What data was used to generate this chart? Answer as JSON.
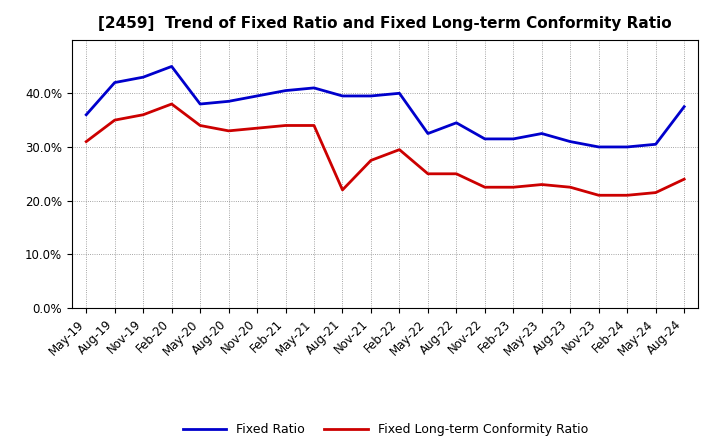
{
  "title": "[2459]  Trend of Fixed Ratio and Fixed Long-term Conformity Ratio",
  "x_labels": [
    "May-19",
    "Aug-19",
    "Nov-19",
    "Feb-20",
    "May-20",
    "Aug-20",
    "Nov-20",
    "Feb-21",
    "May-21",
    "Aug-21",
    "Nov-21",
    "Feb-22",
    "May-22",
    "Aug-22",
    "Nov-22",
    "Feb-23",
    "May-23",
    "Aug-23",
    "Nov-23",
    "Feb-24",
    "May-24",
    "Aug-24"
  ],
  "fixed_ratio": [
    36.0,
    42.0,
    43.0,
    45.0,
    38.0,
    38.5,
    39.5,
    40.5,
    41.0,
    39.5,
    39.5,
    40.0,
    32.5,
    34.5,
    31.5,
    31.5,
    32.5,
    31.0,
    30.0,
    30.0,
    30.5,
    37.5
  ],
  "fixed_lt_ratio": [
    31.0,
    35.0,
    36.0,
    38.0,
    34.0,
    33.0,
    33.5,
    34.0,
    34.0,
    22.0,
    27.5,
    29.5,
    25.0,
    25.0,
    22.5,
    22.5,
    23.0,
    22.5,
    21.0,
    21.0,
    21.5,
    24.0
  ],
  "ylim": [
    0,
    50
  ],
  "yticks": [
    0,
    10,
    20,
    30,
    40
  ],
  "line_color_fixed": "#0000CC",
  "line_color_lt": "#CC0000",
  "background_color": "#FFFFFF",
  "grid_color": "#888888",
  "legend_fixed": "Fixed Ratio",
  "legend_lt": "Fixed Long-term Conformity Ratio",
  "title_fontsize": 11,
  "tick_fontsize": 8.5,
  "legend_fontsize": 9
}
